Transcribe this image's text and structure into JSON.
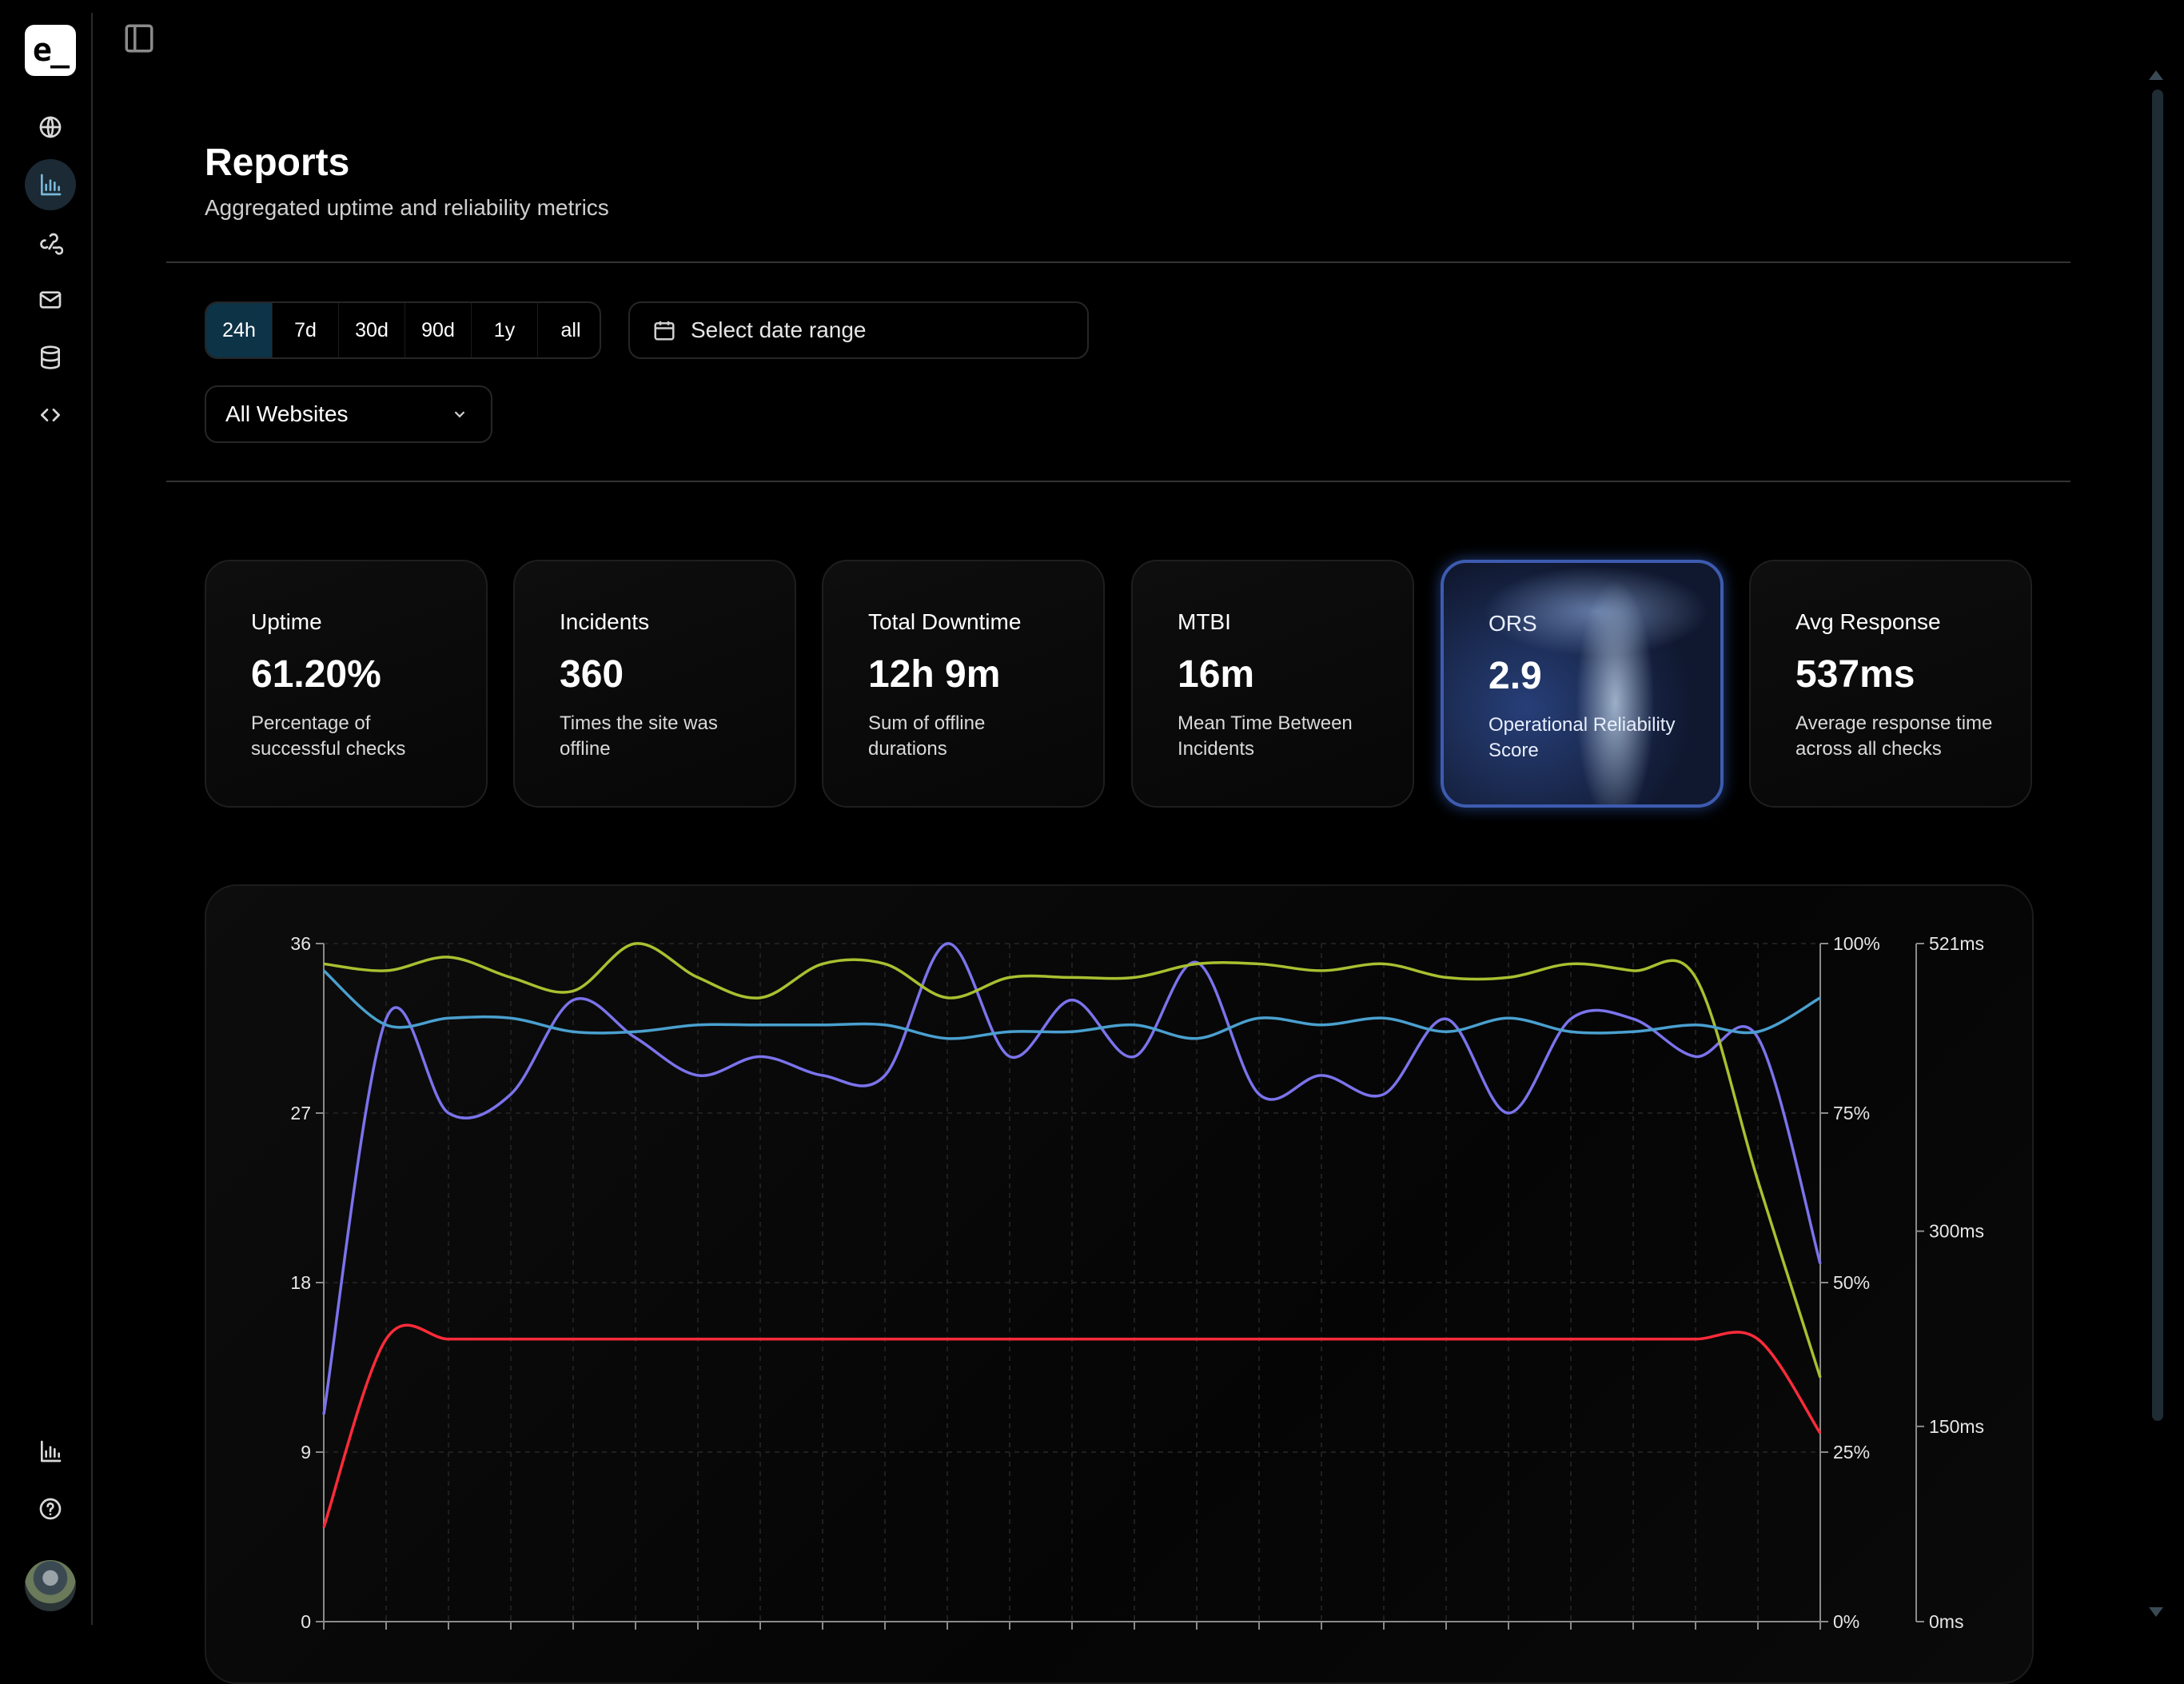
{
  "app": {
    "logo_text": "e_"
  },
  "sidebar": {
    "items": [
      {
        "icon": "globe-icon",
        "active": false
      },
      {
        "icon": "bar-chart-icon",
        "active": true
      },
      {
        "icon": "webhook-icon",
        "active": false
      },
      {
        "icon": "mail-icon",
        "active": false
      },
      {
        "icon": "database-icon",
        "active": false
      },
      {
        "icon": "code-icon",
        "active": false
      }
    ],
    "bottom_items": [
      {
        "icon": "bar-chart-icon"
      },
      {
        "icon": "help-icon"
      }
    ]
  },
  "header": {
    "title": "Reports",
    "subtitle": "Aggregated uptime and reliability metrics"
  },
  "filters": {
    "ranges": [
      "24h",
      "7d",
      "30d",
      "90d",
      "1y",
      "all"
    ],
    "active_range": "24h",
    "date_range_placeholder": "Select date range",
    "website_select": "All Websites"
  },
  "metrics": [
    {
      "label": "Uptime",
      "value": "61.20%",
      "desc": "Percentage of successful checks"
    },
    {
      "label": "Incidents",
      "value": "360",
      "desc": "Times the site was offline"
    },
    {
      "label": "Total Downtime",
      "value": "12h 9m",
      "desc": "Sum of offline durations"
    },
    {
      "label": "MTBI",
      "value": "16m",
      "desc": "Mean Time Between Incidents"
    },
    {
      "label": "ORS",
      "value": "2.9",
      "desc": "Operational Reliability Score"
    },
    {
      "label": "Avg Response",
      "value": "537ms",
      "desc": "Average response time across all checks"
    }
  ],
  "chart_data": {
    "type": "line",
    "title": "",
    "grid": true,
    "axes": {
      "left": {
        "ticks": [
          "0",
          "9",
          "18",
          "27",
          "36"
        ],
        "range": [
          0,
          36
        ]
      },
      "right_percent": {
        "ticks": [
          "0%",
          "25%",
          "50%",
          "75%",
          "100%"
        ],
        "range": [
          0,
          100
        ]
      },
      "right_ms": {
        "ticks": [
          "0ms",
          "150ms",
          "300ms",
          "521ms"
        ],
        "range": [
          0,
          521
        ]
      }
    },
    "x_count": 25,
    "series": [
      {
        "axis": "left",
        "color": "#ff2b3a",
        "values": [
          5,
          15,
          15,
          15,
          15,
          15,
          15,
          15,
          15,
          15,
          15,
          15,
          15,
          15,
          15,
          15,
          15,
          15,
          15,
          15,
          15,
          15,
          15,
          15,
          10
        ]
      },
      {
        "axis": "left",
        "color": "#7b73ec",
        "values": [
          11,
          32,
          27,
          28,
          33,
          31,
          29,
          30,
          29,
          29,
          36,
          30,
          33,
          30,
          35,
          28,
          29,
          28,
          32,
          27,
          32,
          32,
          30,
          31,
          19
        ]
      },
      {
        "axis": "right_percent",
        "color": "#a9c030",
        "values": [
          97,
          96,
          98,
          95,
          93,
          100,
          95,
          92,
          97,
          97,
          92,
          95,
          95,
          95,
          97,
          97,
          96,
          97,
          95,
          95,
          97,
          96,
          95,
          65,
          36
        ]
      },
      {
        "axis": "right_percent",
        "color": "#4aa0cf",
        "values": [
          96,
          88,
          89,
          89,
          87,
          87,
          88,
          88,
          88,
          88,
          86,
          87,
          87,
          88,
          86,
          89,
          88,
          89,
          87,
          89,
          87,
          87,
          88,
          87,
          92
        ]
      }
    ]
  }
}
